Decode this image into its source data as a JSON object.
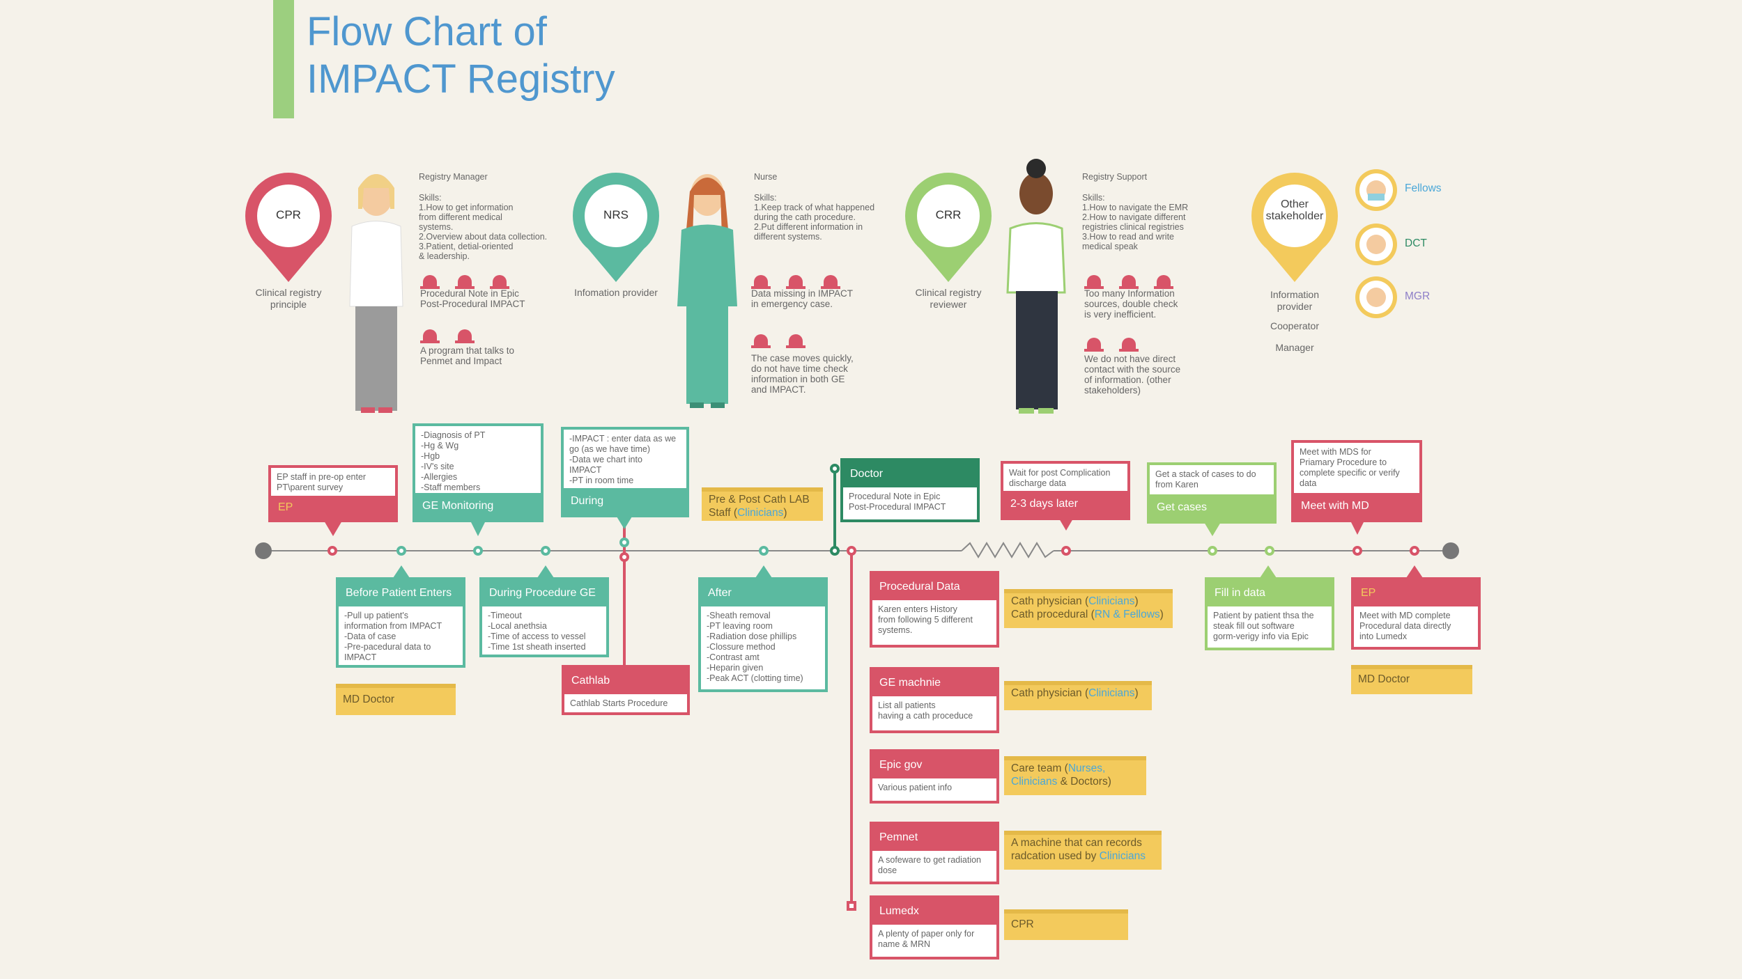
{
  "title": "Flow Chart of\nIMPACT Registry",
  "roles": [
    {
      "pin": "CPR",
      "pin_label": "Clinical registry\nprinciple",
      "role": "Registry Manager",
      "skills": "Skills:\n1.How to get information\n   from different medical\n   systems.\n2.Overview about data collection.\n3.Patient, detial-oriented\n   & leadership.",
      "issues": [
        "Procedural Note in Epic\nPost-Procedural IMPACT",
        "A program that talks to\nPenmet and Impact"
      ]
    },
    {
      "pin": "NRS",
      "pin_label": "Infomation provider",
      "role": "Nurse",
      "skills": "Skills:\n1.Keep track of what happened\n   during the cath procedure.\n2.Put different information in\n   different systems.",
      "issues": [
        "Data missing in IMPACT\nin emergency case.",
        "The case moves quickly,\ndo not have time check\ninformation in both GE\nand IMPACT."
      ]
    },
    {
      "pin": "CRR",
      "pin_label": "Clinical registry\nreviewer",
      "role": "Registry Support",
      "skills": "Skills:\n1.How to navigate the EMR\n2.How to navigate different\n   registries clinical registries\n3.How to read and write\n   medical speak",
      "issues": [
        "Too many Information\nsources, double check\nis very inefficient.",
        "We do not have direct\ncontact with the source\nof information. (other\nstakeholders)"
      ]
    }
  ],
  "other": {
    "pin": "Other\nstakeholder",
    "labels": [
      "Information\nprovider",
      "Cooperator",
      "Manager"
    ],
    "people": [
      "Fellows",
      "DCT",
      "MGR"
    ]
  },
  "top_boxes": {
    "ep": {
      "text": "EP staff in pre-op enter\nPT\\parent survey",
      "label": "EP"
    },
    "ge_mon": {
      "text": "-Diagnosis of PT\n-Hg & Wg\n-Hgb\n-IV's site\n-Allergies\n-Staff members",
      "label": "GE Monitoring"
    },
    "during": {
      "text": "-IMPACT : enter data as we\ngo (as we have time)\n-Data we chart into\nIMPACT\n-PT in room time",
      "label": "During"
    },
    "prepost": {
      "text": "Pre & Post Cath LAB\nStaff (",
      "hl": "Clinicians",
      "end": ")"
    },
    "doctor": {
      "label": "Doctor",
      "text": "Procedural Note  in Epic\nPost-Procedural IMPACT"
    },
    "wait": {
      "text": "Wait for post Complication\ndischarge data",
      "label": "2-3 days later"
    },
    "getcases": {
      "text": "Get a stack of cases to do\nfrom Karen",
      "label": "Get cases"
    },
    "meetmd": {
      "text": "Meet with MDS for\nPriamary Procedure to\ncomplete specific or verify\ndata",
      "label": "Meet with MD"
    }
  },
  "bottom_boxes": {
    "before": {
      "label": "Before Patient Enters",
      "text": "-Pull up patient's\ninformation from IMPACT\n-Data of case\n-Pre-pacedural data to\nIMPACT"
    },
    "md1": "MD Doctor",
    "duringge": {
      "label": "During Procedure GE",
      "text": "-Timeout\n-Local anethsia\n-Time of access to vessel\n-Time 1st sheath inserted"
    },
    "cathlab": {
      "label": "Cathlab",
      "text": "Cathlab Starts Procedure"
    },
    "after": {
      "label": "After",
      "text": "-Sheath removal\n-PT leaving room\n-Radiation dose phillips\n-Clossure method\n-Contrast amt\n-Heparin given\n-Peak ACT (clotting time)"
    },
    "proc": {
      "label": "Procedural Data",
      "text": "Karen enters History\nfrom following 5 different\nsystems."
    },
    "ge": {
      "label": "GE machnie",
      "text": "List all patients\nhaving a cath proceduce"
    },
    "epic": {
      "label": "Epic gov",
      "text": "Various patient info"
    },
    "pemnet": {
      "label": "Pemnet",
      "text": "A sofeware to get radiation\ndose"
    },
    "lumedx": {
      "label": "Lumedx",
      "text": "A plenty of paper only for\nname & MRN"
    },
    "fill": {
      "label": "Fill in data",
      "text": "Patient by patient thsa the\nsteak fill out software\ngorm-verigy info via Epic"
    },
    "ep2": {
      "label": "EP",
      "text": "Meet with MD complete\nProcedural data directly\ninto Lumedx"
    },
    "md2": "MD Doctor"
  },
  "notes": {
    "n1a": "Cath physician (",
    "n1b": "Clinicians",
    "n1c": ")",
    "n1d": "Cath procedural (",
    "n1e": "RN & Fellows",
    "n1f": ")",
    "n2a": "Cath physician (",
    "n2b": "Clinicians",
    "n2c": ")",
    "n3a": "Care team (",
    "n3b": "Nurses,",
    "n3c": "Clinicians",
    "n3d": " & Doctors)",
    "n4a": "A machine that can records\nradcation used by ",
    "n4b": "Clinicians",
    "n5": "CPR"
  },
  "colors": {
    "red": "#d85468",
    "teal": "#5bbaa0",
    "green": "#9ccf72",
    "dark_green": "#2d8a63",
    "yellow": "#f3ca5c",
    "title": "#4f97cf"
  }
}
